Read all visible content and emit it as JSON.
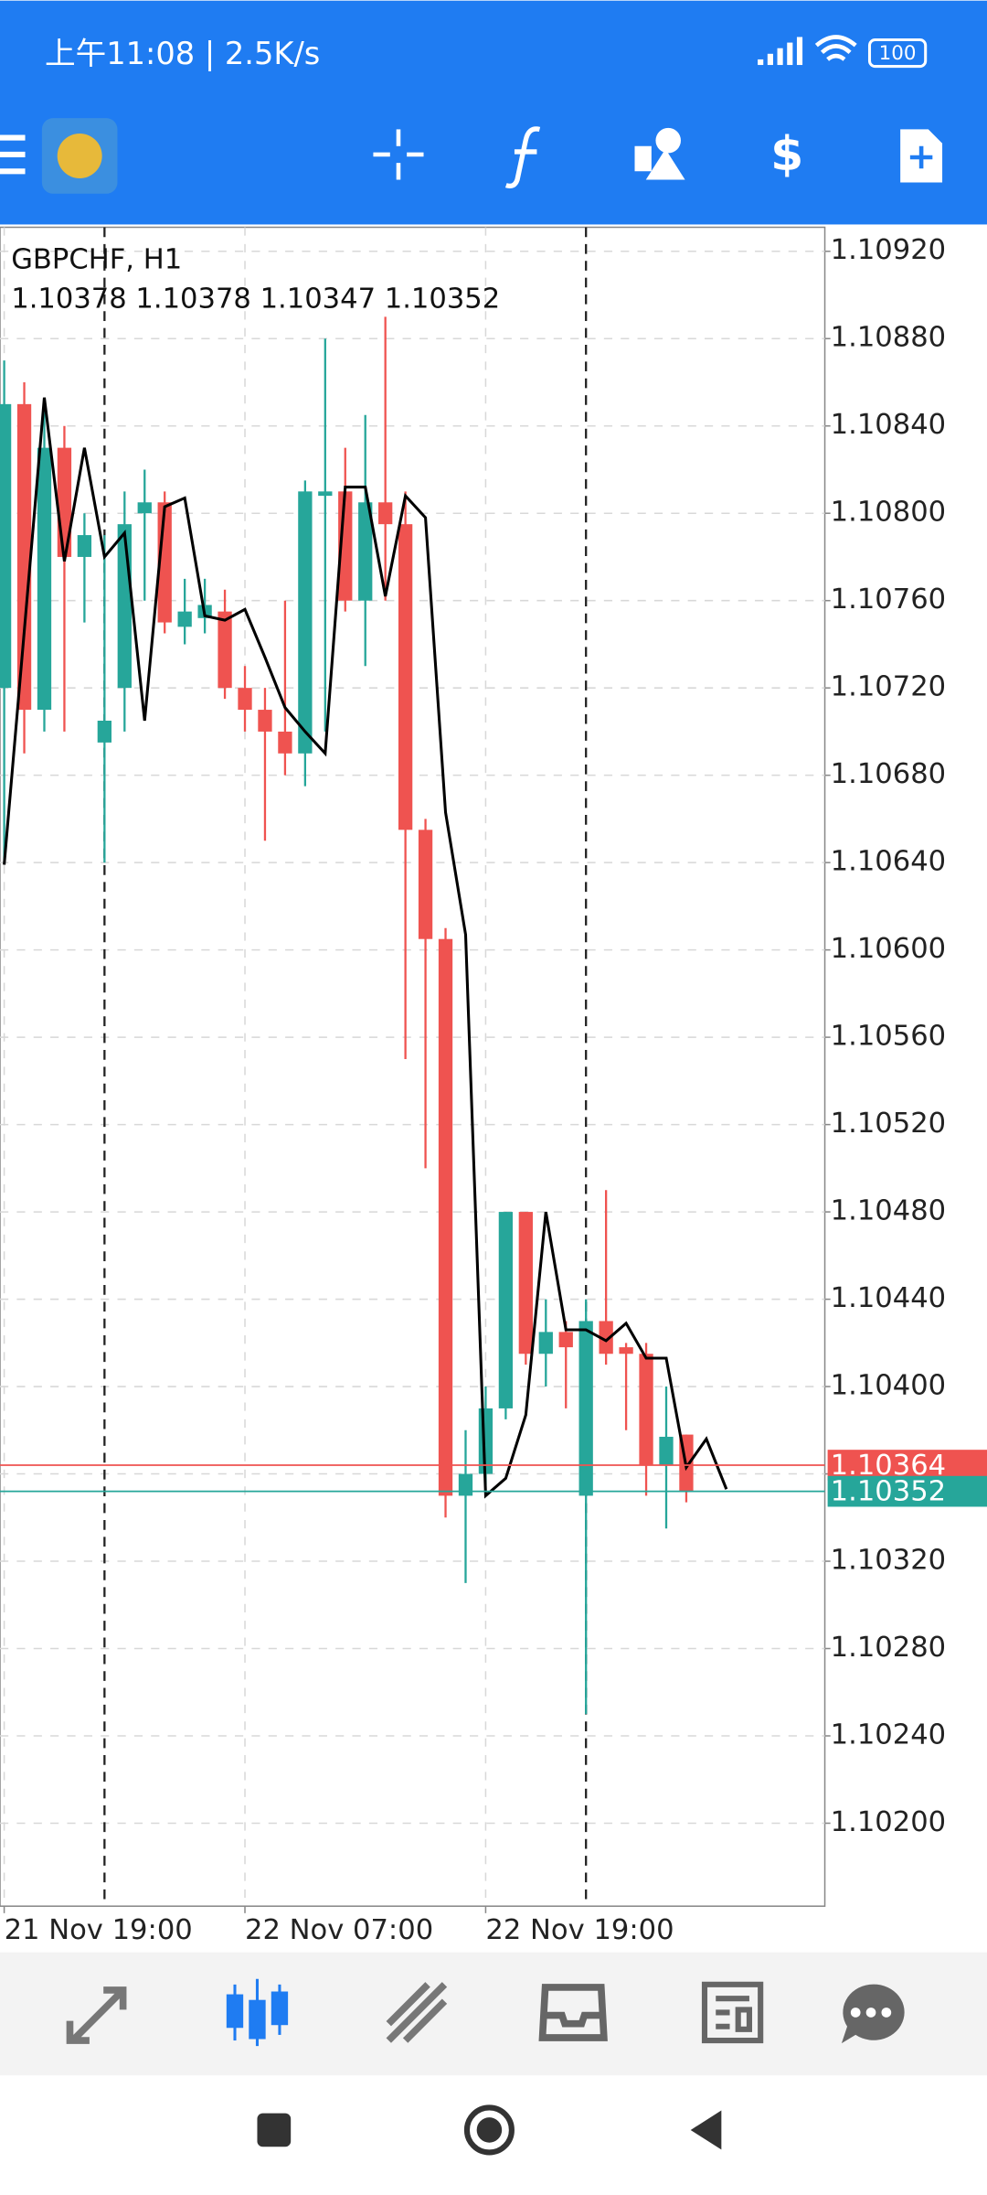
{
  "status_bar": {
    "time": "上午11:08 | 2.5K/s",
    "battery": "100"
  },
  "chart_data": {
    "type": "candlestick",
    "title": "GBPCHF, H1",
    "ohlc_text": "1.10378 1.10378 1.10347 1.10352",
    "open": [
      1.1072,
      1.1085,
      1.1071,
      1.1083,
      1.1078,
      1.10695,
      1.1072,
      1.108,
      1.10805,
      1.10748,
      1.10752,
      1.10755,
      1.1072,
      1.1071,
      1.107,
      1.1069,
      1.10808,
      1.1081,
      1.1076,
      1.10805,
      1.10795,
      1.10655,
      1.10605,
      1.1035,
      1.1036,
      1.1039,
      1.1048,
      1.10415,
      1.10425,
      1.1035,
      1.1043,
      1.10418,
      1.10415,
      1.10364,
      1.10378
    ],
    "high": [
      1.1087,
      1.1086,
      1.1085,
      1.1084,
      1.108,
      1.1079,
      1.1081,
      1.1082,
      1.1081,
      1.1077,
      1.1077,
      1.10765,
      1.1073,
      1.1072,
      1.1076,
      1.10815,
      1.1088,
      1.1083,
      1.10845,
      1.1089,
      1.1081,
      1.1066,
      1.1061,
      1.1038,
      1.104,
      1.1048,
      1.1048,
      1.1044,
      1.1043,
      1.1044,
      1.1049,
      1.1042,
      1.1042,
      1.104,
      1.10378
    ],
    "low": [
      1.1064,
      1.1069,
      1.107,
      1.107,
      1.1075,
      1.1064,
      1.107,
      1.1076,
      1.10745,
      1.1074,
      1.10745,
      1.10715,
      1.107,
      1.1065,
      1.1068,
      1.10675,
      1.107,
      1.10755,
      1.1073,
      1.1076,
      1.1055,
      1.105,
      1.1034,
      1.1031,
      1.10355,
      1.10385,
      1.1041,
      1.104,
      1.1039,
      1.1025,
      1.1041,
      1.1038,
      1.1035,
      1.10335,
      1.10347
    ],
    "close": [
      1.1085,
      1.1071,
      1.1083,
      1.1078,
      1.1079,
      1.10705,
      1.10795,
      1.10805,
      1.1075,
      1.10755,
      1.10758,
      1.1072,
      1.1071,
      1.107,
      1.1069,
      1.1081,
      1.1081,
      1.1076,
      1.10805,
      1.10795,
      1.10655,
      1.10605,
      1.1035,
      1.1036,
      1.1039,
      1.1048,
      1.10415,
      1.10425,
      1.10418,
      1.1043,
      1.10415,
      1.10415,
      1.10364,
      1.10377,
      1.10352
    ],
    "line": [
      1.10639,
      1.10746,
      1.10853,
      1.10778,
      1.1083,
      1.1078,
      1.10791,
      1.10705,
      1.10803,
      1.10807,
      1.10753,
      1.10751,
      1.10756,
      1.10734,
      1.10711,
      1.107,
      1.1069,
      1.10812,
      1.10812,
      1.10762,
      1.10808,
      1.10798,
      1.10663,
      1.10607,
      1.1035,
      1.10358,
      1.10387,
      1.1048,
      1.10426,
      1.10426,
      1.10421,
      1.10429,
      1.10413,
      1.10413,
      1.10363,
      1.10376,
      1.10353
    ],
    "up_color": "#26a69a",
    "down_color": "#ef5350",
    "line_color": "#000000",
    "ask": 1.10364,
    "bid": 1.10352,
    "ylim": [
      1.10162,
      1.10931
    ],
    "yticks": [
      {
        "value": 1.1092,
        "label": "1.10920"
      },
      {
        "value": 1.1088,
        "label": "1.10880"
      },
      {
        "value": 1.1084,
        "label": "1.10840"
      },
      {
        "value": 1.108,
        "label": "1.10800"
      },
      {
        "value": 1.1076,
        "label": "1.10760"
      },
      {
        "value": 1.1072,
        "label": "1.10720"
      },
      {
        "value": 1.1068,
        "label": "1.10680"
      },
      {
        "value": 1.1064,
        "label": "1.10640"
      },
      {
        "value": 1.106,
        "label": "1.10600"
      },
      {
        "value": 1.1056,
        "label": "1.10560"
      },
      {
        "value": 1.1052,
        "label": "1.10520"
      },
      {
        "value": 1.1048,
        "label": "1.10480"
      },
      {
        "value": 1.1044,
        "label": "1.10440"
      },
      {
        "value": 1.104,
        "label": "1.10400"
      },
      {
        "value": 1.1036,
        "label": "1.10360"
      },
      {
        "value": 1.1032,
        "label": "1.10320"
      },
      {
        "value": 1.1028,
        "label": "1.10280"
      },
      {
        "value": 1.1024,
        "label": "1.10240"
      },
      {
        "value": 1.102,
        "label": "1.10200"
      }
    ],
    "xticks": [
      {
        "value": 0,
        "label": "21 Nov 19:00"
      },
      {
        "value": 12,
        "label": "22 Nov 07:00"
      },
      {
        "value": 24,
        "label": "22 Nov 19:00"
      }
    ],
    "day_separators": [
      5,
      29
    ],
    "grid": true
  }
}
